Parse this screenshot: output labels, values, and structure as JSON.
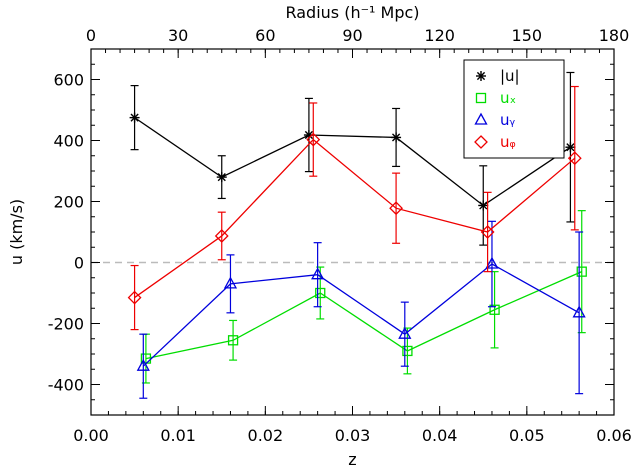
{
  "chart_data": {
    "type": "line",
    "xlabel": "z",
    "ylabel": "u (km/s)",
    "top_axis_label": "Radius (h⁻¹ Mpc)",
    "xlim": [
      0.0,
      0.06
    ],
    "ylim": [
      -500,
      700
    ],
    "top_axis_range": [
      0,
      180
    ],
    "x_ticks": [
      "0.00",
      "0.01",
      "0.02",
      "0.03",
      "0.04",
      "0.05",
      "0.06"
    ],
    "y_ticks": [
      "-400",
      "-200",
      "0",
      "200",
      "400",
      "600"
    ],
    "top_ticks": [
      "0",
      "30",
      "60",
      "90",
      "120",
      "150",
      "180"
    ],
    "zero_line": {
      "y": 0,
      "style": "dashed",
      "color": "#bbbbbb"
    },
    "legend_position": "top-right",
    "series": [
      {
        "name": "|u|",
        "color": "#000000",
        "marker": "star",
        "x": [
          0.005,
          0.015,
          0.025,
          0.035,
          0.045,
          0.055
        ],
        "y": [
          475,
          280,
          418,
          410,
          187,
          378
        ],
        "yerr": [
          105,
          70,
          120,
          95,
          130,
          245
        ]
      },
      {
        "name": "uₓ",
        "color": "#00dd00",
        "marker": "square",
        "x": [
          0.0063,
          0.0163,
          0.0263,
          0.0363,
          0.0463,
          0.0563
        ],
        "y": [
          -315,
          -255,
          -100,
          -290,
          -155,
          -30
        ],
        "yerr": [
          80,
          65,
          85,
          75,
          125,
          200
        ]
      },
      {
        "name": "uᵧ",
        "color": "#0000dd",
        "marker": "triangle",
        "x": [
          0.006,
          0.016,
          0.026,
          0.036,
          0.046,
          0.056
        ],
        "y": [
          -340,
          -70,
          -40,
          -235,
          -5,
          -165
        ],
        "yerr": [
          105,
          95,
          105,
          105,
          140,
          265
        ]
      },
      {
        "name": "uᵩ",
        "color": "#ee0000",
        "marker": "diamond",
        "x": [
          0.005,
          0.015,
          0.0255,
          0.035,
          0.0455,
          0.0555
        ],
        "y": [
          -115,
          87,
          403,
          178,
          100,
          342
        ],
        "yerr": [
          105,
          78,
          120,
          115,
          130,
          235
        ]
      }
    ]
  }
}
